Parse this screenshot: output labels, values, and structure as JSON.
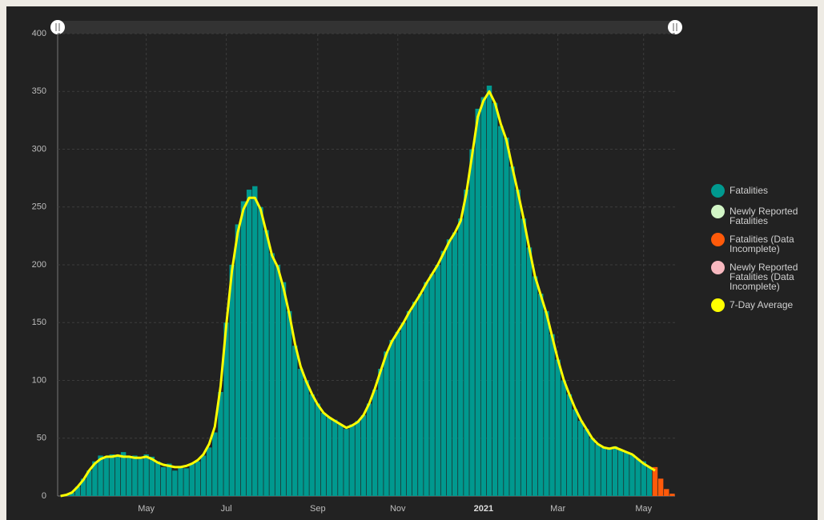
{
  "chart_data": {
    "type": "bar",
    "ylim": [
      0,
      400
    ],
    "yticks": [
      0,
      50,
      100,
      150,
      200,
      250,
      300,
      350,
      400
    ],
    "grid": true,
    "categories": [
      null,
      null,
      null,
      null,
      null,
      null,
      null,
      null,
      null,
      null,
      null,
      null,
      null,
      null,
      null,
      "May",
      null,
      null,
      null,
      null,
      null,
      null,
      null,
      null,
      null,
      null,
      null,
      null,
      null,
      "Jul",
      null,
      null,
      null,
      null,
      null,
      null,
      null,
      null,
      null,
      null,
      null,
      null,
      null,
      null,
      null,
      "Sep",
      null,
      null,
      null,
      null,
      null,
      null,
      null,
      null,
      null,
      null,
      null,
      null,
      null,
      "Nov",
      null,
      null,
      null,
      null,
      null,
      null,
      null,
      null,
      null,
      null,
      null,
      null,
      null,
      null,
      "2021",
      null,
      null,
      null,
      null,
      null,
      null,
      null,
      null,
      null,
      null,
      null,
      null,
      "Mar",
      null,
      null,
      null,
      null,
      null,
      null,
      null,
      null,
      null,
      null,
      null,
      null,
      null,
      null,
      "May",
      null,
      null,
      null,
      null,
      null
    ],
    "series": [
      {
        "name": "Fatalities",
        "color": "#00998f",
        "values": [
          0,
          1,
          3,
          8,
          15,
          22,
          30,
          35,
          33,
          36,
          34,
          38,
          33,
          35,
          32,
          36,
          34,
          30,
          25,
          28,
          22,
          26,
          24,
          28,
          30,
          35,
          42,
          55,
          90,
          150,
          200,
          235,
          255,
          265,
          268,
          250,
          230,
          210,
          200,
          185,
          160,
          130,
          110,
          100,
          88,
          80,
          72,
          68,
          66,
          62,
          58,
          62,
          65,
          70,
          80,
          92,
          110,
          125,
          135,
          142,
          150,
          160,
          168,
          175,
          185,
          192,
          200,
          212,
          222,
          228,
          240,
          265,
          300,
          335,
          345,
          355,
          340,
          320,
          310,
          285,
          265,
          240,
          215,
          190,
          175,
          160,
          140,
          118,
          100,
          88,
          75,
          65,
          58,
          50,
          45,
          42,
          42,
          43,
          40,
          38,
          36,
          32,
          30,
          25,
          null,
          null,
          null,
          null
        ]
      },
      {
        "name": "Newly Reported Fatalities",
        "color": "#d2f5c6",
        "values": [
          null,
          null,
          null,
          null,
          null,
          null,
          null,
          null,
          null,
          null,
          null,
          null,
          null,
          null,
          null,
          null,
          null,
          null,
          null,
          null,
          null,
          null,
          null,
          null,
          null,
          null,
          null,
          null,
          null,
          null,
          null,
          null,
          null,
          null,
          null,
          null,
          null,
          null,
          null,
          null,
          null,
          null,
          null,
          null,
          null,
          null,
          null,
          null,
          null,
          null,
          null,
          null,
          null,
          null,
          null,
          null,
          null,
          null,
          null,
          null,
          null,
          null,
          null,
          null,
          null,
          null,
          null,
          null,
          null,
          null,
          null,
          null,
          null,
          null,
          null,
          null,
          null,
          null,
          null,
          null,
          null,
          null,
          null,
          null,
          null,
          null,
          null,
          null,
          null,
          null,
          null,
          null,
          null,
          null,
          null,
          null,
          null,
          null,
          null,
          null,
          null,
          null,
          null,
          null,
          null,
          null,
          null,
          null
        ]
      },
      {
        "name": "Fatalities (Data Incomplete)",
        "color": "#ff5a0a",
        "values": [
          null,
          null,
          null,
          null,
          null,
          null,
          null,
          null,
          null,
          null,
          null,
          null,
          null,
          null,
          null,
          null,
          null,
          null,
          null,
          null,
          null,
          null,
          null,
          null,
          null,
          null,
          null,
          null,
          null,
          null,
          null,
          null,
          null,
          null,
          null,
          null,
          null,
          null,
          null,
          null,
          null,
          null,
          null,
          null,
          null,
          null,
          null,
          null,
          null,
          null,
          null,
          null,
          null,
          null,
          null,
          null,
          null,
          null,
          null,
          null,
          null,
          null,
          null,
          null,
          null,
          null,
          null,
          null,
          null,
          null,
          null,
          null,
          null,
          null,
          null,
          null,
          null,
          null,
          null,
          null,
          null,
          null,
          null,
          null,
          null,
          null,
          null,
          null,
          null,
          null,
          null,
          null,
          null,
          null,
          null,
          null,
          null,
          null,
          null,
          null,
          null,
          null,
          null,
          null,
          25,
          15,
          6,
          2
        ]
      },
      {
        "name": "Newly Reported Fatalities (Data Incomplete)",
        "color": "#f7b8bf",
        "values": [
          null,
          null,
          null,
          null,
          null,
          null,
          null,
          null,
          null,
          null,
          null,
          null,
          null,
          null,
          null,
          null,
          null,
          null,
          null,
          null,
          null,
          null,
          null,
          null,
          null,
          null,
          null,
          null,
          null,
          null,
          null,
          null,
          null,
          null,
          null,
          null,
          null,
          null,
          null,
          null,
          null,
          null,
          null,
          null,
          null,
          null,
          null,
          null,
          null,
          null,
          null,
          null,
          null,
          null,
          null,
          null,
          null,
          null,
          null,
          null,
          null,
          null,
          null,
          null,
          null,
          null,
          null,
          null,
          null,
          null,
          null,
          null,
          null,
          null,
          null,
          null,
          null,
          null,
          null,
          null,
          null,
          null,
          null,
          null,
          null,
          null,
          null,
          null,
          null,
          null,
          null,
          null,
          null,
          null,
          null,
          null,
          null,
          null,
          null,
          null,
          null,
          null,
          null,
          null,
          null,
          null,
          null,
          null
        ]
      },
      {
        "name": "7-Day Average",
        "color": "#ffff00",
        "type": "line",
        "values": [
          0,
          1,
          3,
          8,
          14,
          22,
          28,
          32,
          34,
          34,
          35,
          34,
          34,
          33,
          33,
          34,
          32,
          29,
          27,
          26,
          25,
          25,
          26,
          28,
          31,
          36,
          45,
          60,
          95,
          148,
          195,
          228,
          248,
          258,
          258,
          248,
          228,
          208,
          198,
          180,
          158,
          132,
          112,
          99,
          88,
          79,
          72,
          68,
          65,
          62,
          59,
          61,
          64,
          70,
          80,
          93,
          108,
          123,
          134,
          142,
          150,
          159,
          167,
          175,
          184,
          192,
          200,
          210,
          220,
          228,
          238,
          262,
          295,
          328,
          342,
          350,
          340,
          322,
          308,
          285,
          263,
          240,
          214,
          190,
          174,
          158,
          138,
          118,
          101,
          88,
          76,
          66,
          58,
          50,
          45,
          42,
          41,
          42,
          40,
          38,
          36,
          32,
          28,
          25,
          22,
          null,
          null,
          null
        ]
      }
    ]
  }
}
